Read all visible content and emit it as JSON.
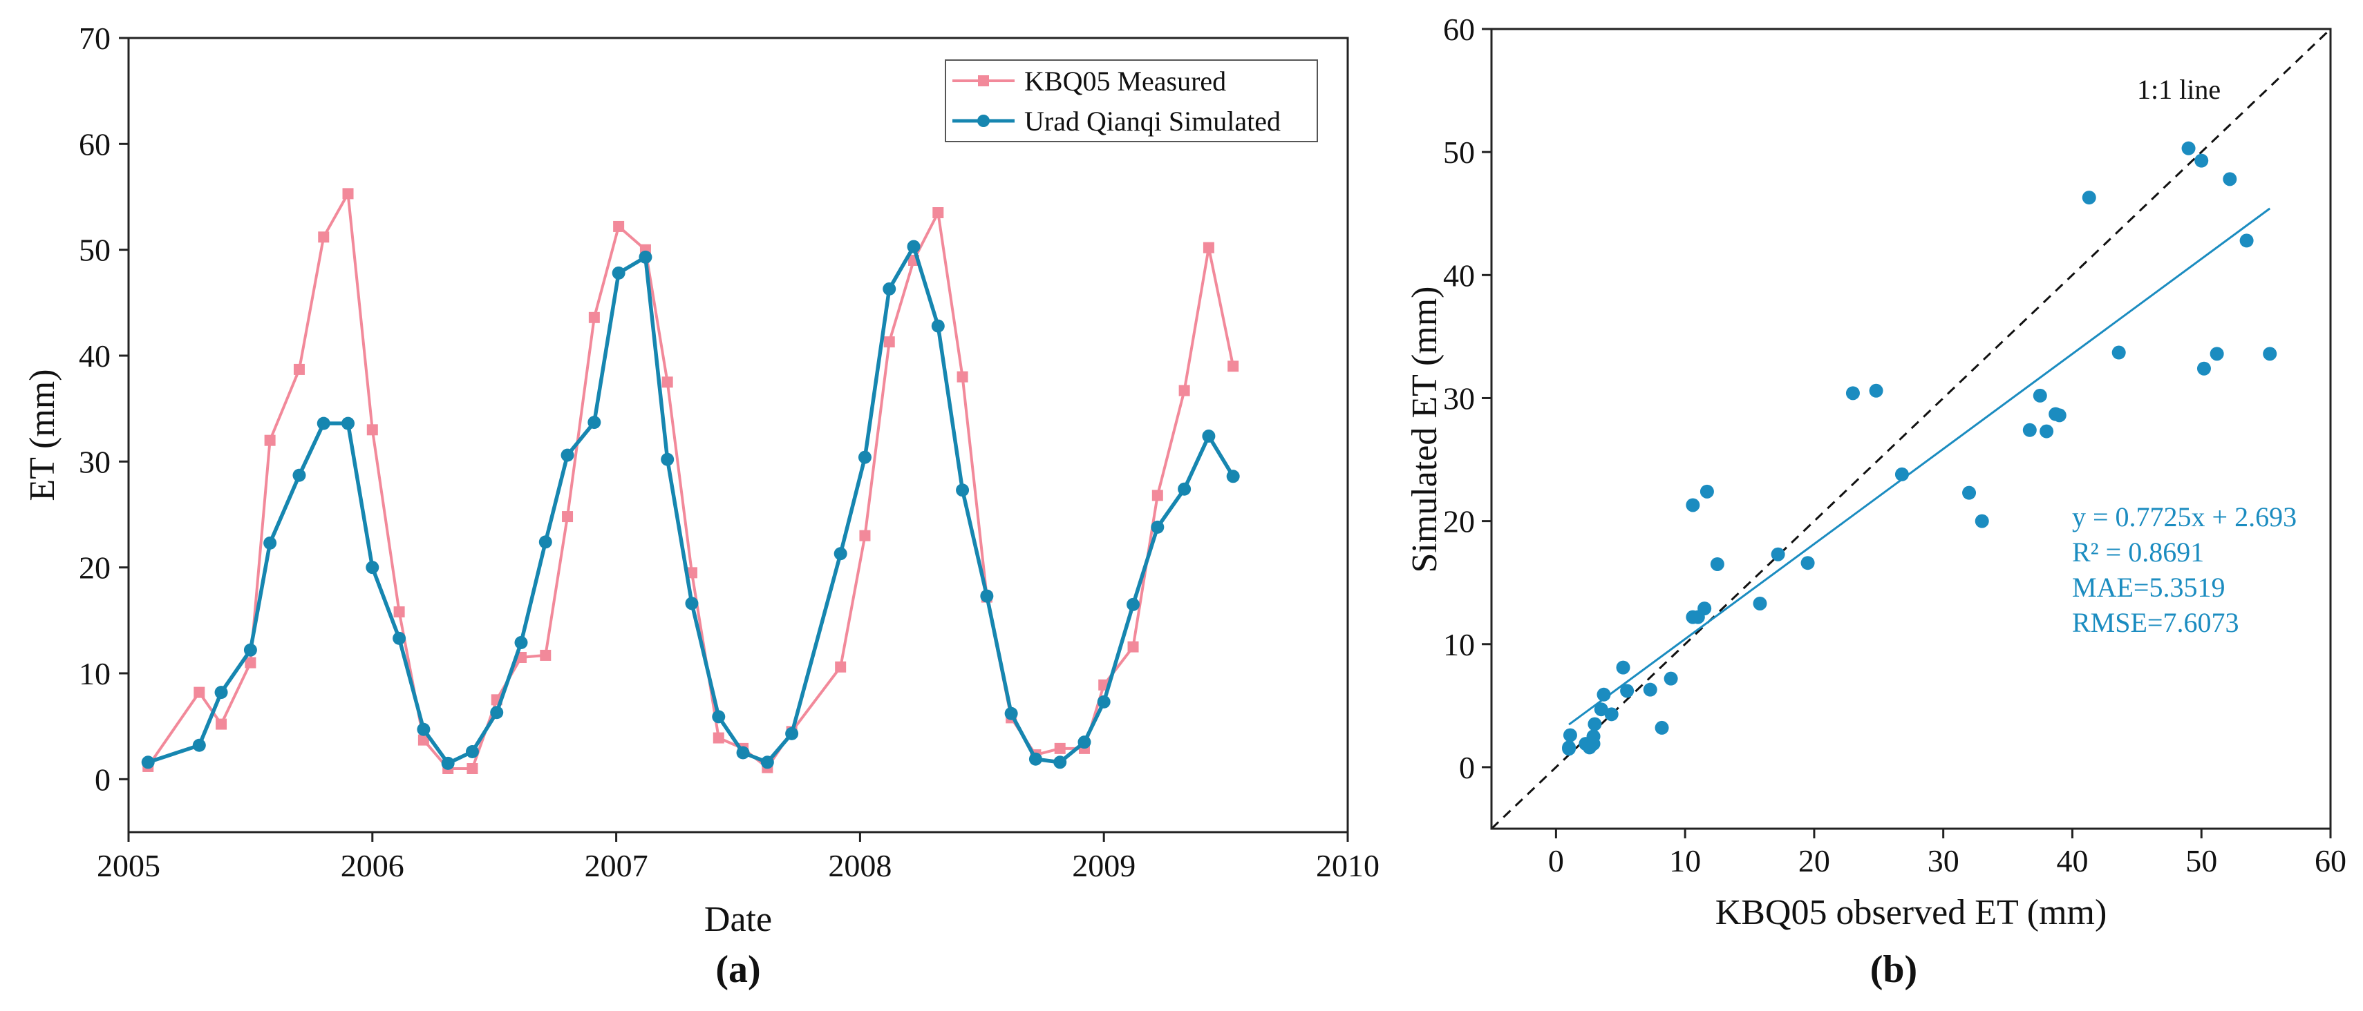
{
  "colors": {
    "measured": "#f2899a",
    "simulated": "#1686b0",
    "scatter": "#1b8cc0",
    "fit": "#1b8cc0",
    "refline": "#111111"
  },
  "chart_data": [
    {
      "type": "line",
      "panel_label": "(a)",
      "xlabel": "Date",
      "ylabel": "ET  (mm)",
      "xlim": [
        2005,
        2010
      ],
      "ylim": [
        -5,
        70
      ],
      "xticks": [
        2005,
        2006,
        2007,
        2008,
        2009,
        2010
      ],
      "yticks": [
        0,
        10,
        20,
        30,
        40,
        50,
        60,
        70
      ],
      "legend_position": "top-right",
      "series": [
        {
          "name": "KBQ05 Measured",
          "marker": "square",
          "x": [
            2005.08,
            2005.29,
            2005.38,
            2005.5,
            2005.58,
            2005.7,
            2005.8,
            2005.9,
            2006.0,
            2006.11,
            2006.21,
            2006.31,
            2006.41,
            2006.51,
            2006.61,
            2006.71,
            2006.8,
            2006.91,
            2007.01,
            2007.12,
            2007.21,
            2007.31,
            2007.42,
            2007.52,
            2007.62,
            2007.72,
            2007.92,
            2008.02,
            2008.12,
            2008.22,
            2008.32,
            2008.42,
            2008.52,
            2008.62,
            2008.72,
            2008.82,
            2008.92,
            2009.0,
            2009.12,
            2009.22,
            2009.33,
            2009.43,
            2009.53
          ],
          "values": [
            1.2,
            8.2,
            5.2,
            11.0,
            32.0,
            38.7,
            51.2,
            55.3,
            33.0,
            15.8,
            3.7,
            1.0,
            1.0,
            7.5,
            11.5,
            11.7,
            24.8,
            43.6,
            52.2,
            50.0,
            37.5,
            19.5,
            3.9,
            2.9,
            1.1,
            4.5,
            10.6,
            23.0,
            41.3,
            49.0,
            53.5,
            38.0,
            17.2,
            5.8,
            2.3,
            2.9,
            2.9,
            8.9,
            12.5,
            26.8,
            36.7,
            50.2,
            39.0
          ]
        },
        {
          "name": "Urad Qianqi Simulated",
          "marker": "circle",
          "x": [
            2005.08,
            2005.29,
            2005.38,
            2005.5,
            2005.58,
            2005.7,
            2005.8,
            2005.9,
            2006.0,
            2006.11,
            2006.21,
            2006.31,
            2006.41,
            2006.51,
            2006.61,
            2006.71,
            2006.8,
            2006.91,
            2007.01,
            2007.12,
            2007.21,
            2007.31,
            2007.42,
            2007.52,
            2007.62,
            2007.72,
            2007.92,
            2008.02,
            2008.12,
            2008.22,
            2008.32,
            2008.42,
            2008.52,
            2008.62,
            2008.72,
            2008.82,
            2008.92,
            2009.0,
            2009.12,
            2009.22,
            2009.33,
            2009.43,
            2009.53
          ],
          "values": [
            1.6,
            3.2,
            8.2,
            12.2,
            22.3,
            28.7,
            33.6,
            33.6,
            20.0,
            13.3,
            4.7,
            1.5,
            2.6,
            6.3,
            12.9,
            22.4,
            30.6,
            33.7,
            47.8,
            49.3,
            30.2,
            16.6,
            5.9,
            2.5,
            1.6,
            4.3,
            21.3,
            30.4,
            46.3,
            50.3,
            42.8,
            27.3,
            17.3,
            6.2,
            1.9,
            1.6,
            3.5,
            7.3,
            16.5,
            23.8,
            27.4,
            32.4,
            28.6
          ]
        }
      ]
    },
    {
      "type": "scatter",
      "panel_label": "(b)",
      "xlabel": "KBQ05 observed ET (mm)",
      "ylabel": "Simulated ET (mm)",
      "xlim": [
        -5,
        60
      ],
      "ylim": [
        -5,
        60
      ],
      "xticks": [
        0,
        10,
        20,
        30,
        40,
        50,
        60
      ],
      "yticks": [
        0,
        10,
        20,
        30,
        40,
        50,
        60
      ],
      "reference_line": {
        "label": "1:1 line",
        "slope": 1,
        "intercept": 0
      },
      "fit_line": {
        "slope": 0.7725,
        "intercept": 2.693,
        "x_range": [
          1.0,
          55.3
        ]
      },
      "stats": [
        "y = 0.7725x + 2.693",
        "R² = 0.8691",
        "MAE=5.3519",
        "RMSE=7.6073"
      ],
      "points": [
        [
          1.0,
          1.6
        ],
        [
          1.1,
          2.6
        ],
        [
          1.0,
          1.5
        ],
        [
          2.3,
          1.9
        ],
        [
          2.6,
          1.6
        ],
        [
          2.9,
          1.9
        ],
        [
          2.9,
          2.5
        ],
        [
          3.0,
          3.5
        ],
        [
          3.5,
          4.7
        ],
        [
          3.7,
          5.9
        ],
        [
          4.3,
          4.3
        ],
        [
          5.2,
          8.1
        ],
        [
          5.5,
          6.2
        ],
        [
          7.3,
          6.3
        ],
        [
          8.2,
          3.2
        ],
        [
          8.9,
          7.2
        ],
        [
          10.6,
          12.2
        ],
        [
          10.6,
          21.3
        ],
        [
          11.0,
          12.2
        ],
        [
          11.5,
          12.9
        ],
        [
          11.7,
          22.4
        ],
        [
          12.5,
          16.5
        ],
        [
          15.8,
          13.3
        ],
        [
          17.2,
          17.3
        ],
        [
          19.5,
          16.6
        ],
        [
          23.0,
          30.4
        ],
        [
          24.8,
          30.6
        ],
        [
          26.8,
          23.8
        ],
        [
          32.0,
          22.3
        ],
        [
          33.0,
          20.0
        ],
        [
          36.7,
          27.4
        ],
        [
          37.5,
          30.2
        ],
        [
          38.0,
          27.3
        ],
        [
          38.7,
          28.7
        ],
        [
          39.0,
          28.6
        ],
        [
          41.3,
          46.3
        ],
        [
          43.6,
          33.7
        ],
        [
          49.0,
          50.3
        ],
        [
          50.0,
          49.3
        ],
        [
          50.2,
          32.4
        ],
        [
          51.2,
          33.6
        ],
        [
          52.2,
          47.8
        ],
        [
          53.5,
          42.8
        ],
        [
          55.3,
          33.6
        ]
      ]
    }
  ]
}
